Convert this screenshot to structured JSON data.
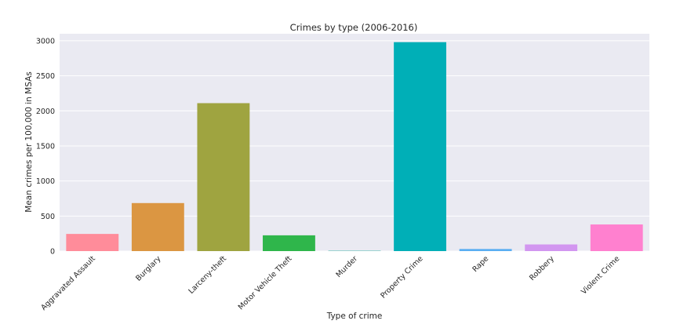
{
  "chart_data": {
    "type": "bar",
    "title": "Crimes by type (2006-2016)",
    "xlabel": "Type of crime",
    "ylabel": "Mean crimes per 100,000 in MSAs",
    "categories": [
      "Aggravated Assault",
      "Burglary",
      "Larceny-theft",
      "Motor Vehicle Theft",
      "Murder",
      "Property Crime",
      "Rape",
      "Robbery",
      "Violent Crime"
    ],
    "values": [
      245,
      685,
      2110,
      225,
      5,
      2980,
      30,
      95,
      380
    ],
    "colors": [
      "#ff8c9a",
      "#db9642",
      "#9fa440",
      "#2fb64b",
      "#3ab3a4",
      "#00afb7",
      "#5aaef2",
      "#d296f0",
      "#ff80cf"
    ],
    "ylim": [
      0,
      3100
    ],
    "yticks": [
      0,
      500,
      1000,
      1500,
      2000,
      2500,
      3000
    ],
    "grid": true,
    "background": "#eaeaf2"
  }
}
